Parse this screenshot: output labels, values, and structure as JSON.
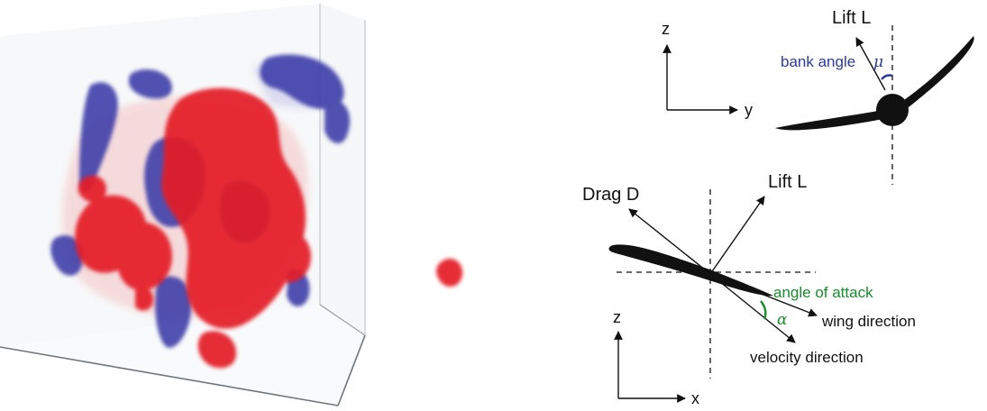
{
  "colors": {
    "vortex_positive": "#e41e25",
    "vortex_negative": "#3a3aa8",
    "bank_angle": "#2d3a9a",
    "angle_of_attack": "#1a8a2e",
    "ink": "#111111"
  },
  "front_view": {
    "axis_vertical": "z",
    "axis_horizontal": "y",
    "lift_label": "Lift L",
    "bank_angle_label": "bank angle",
    "bank_angle_symbol": "μ"
  },
  "side_view": {
    "axis_vertical": "z",
    "axis_horizontal": "x",
    "drag_label": "Drag D",
    "lift_label": "Lift L",
    "angle_of_attack_label": "angle of attack",
    "angle_of_attack_symbol": "α",
    "wing_direction_label": "wing direction",
    "velocity_direction_label": "velocity direction"
  }
}
